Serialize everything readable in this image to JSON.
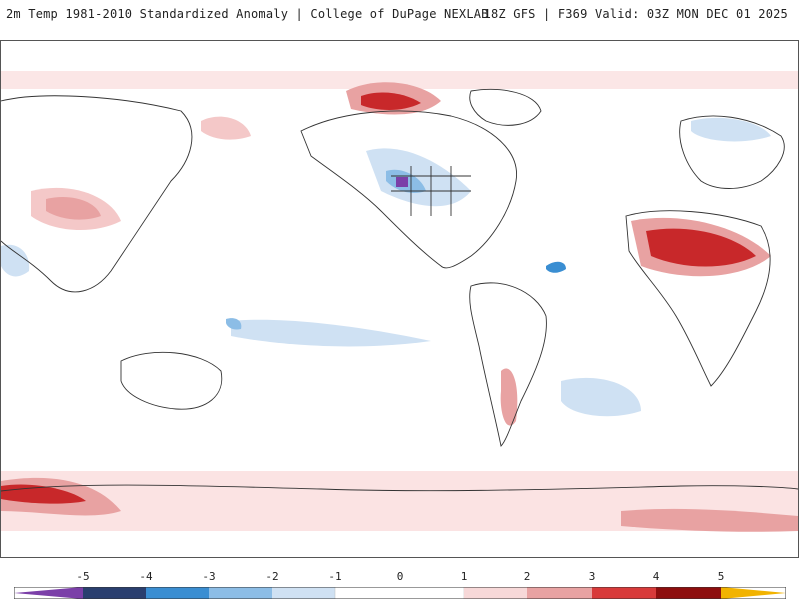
{
  "header": {
    "title": "2m Temp 1981-2010 Standardized Anomaly | College of DuPage NEXLAB",
    "run_info": "18Z GFS | F369 Valid: 03Z MON DEC 01 2025"
  },
  "map": {
    "description_name": "global-anomaly-map"
  },
  "colorbar": {
    "labels": [
      "-5",
      "-4",
      "-3",
      "-2",
      "-1",
      "0",
      "1",
      "2",
      "3",
      "4",
      "5"
    ],
    "colors": {
      "lt_neg5": "#7b3fa8",
      "neg5_neg4": "#2a3f6f",
      "neg4_neg3": "#3a8ed2",
      "neg3_neg2": "#8cbde6",
      "neg2_neg1": "#cfe1f3",
      "neg1_1": "#ffffff",
      "pos1_2": "#f7d8d8",
      "pos2_3": "#e8a2a2",
      "pos3_4": "#d83a3a",
      "pos4_5": "#8e0e0e",
      "gt_pos5": "#f2b300"
    }
  }
}
